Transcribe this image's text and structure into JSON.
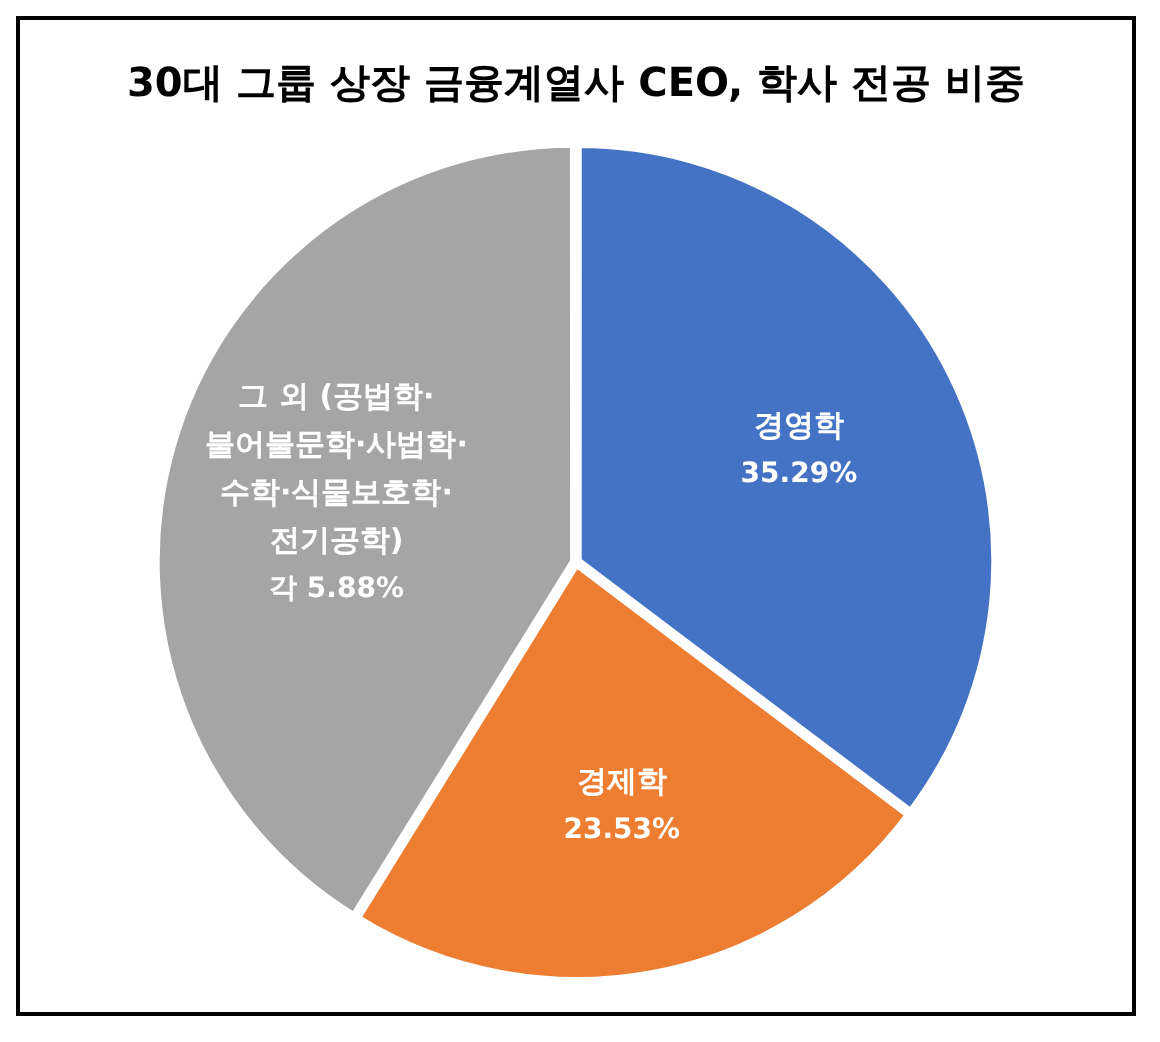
{
  "chart_data": {
    "type": "pie",
    "title": "30대 그룹 상장 금융계열사 CEO, 학사 전공 비중",
    "categories": [
      "경영학",
      "경제학",
      "그 외 (공법학·불어불문학·사법학·수학·식물보호학·전기공학)"
    ],
    "values": [
      35.29,
      23.53,
      41.18
    ],
    "colors": [
      "#4472c4",
      "#ed7d31",
      "#a5a5a5"
    ],
    "value_labels": [
      "35.29%",
      "23.53%",
      "각 5.88%"
    ],
    "legend": false
  }
}
